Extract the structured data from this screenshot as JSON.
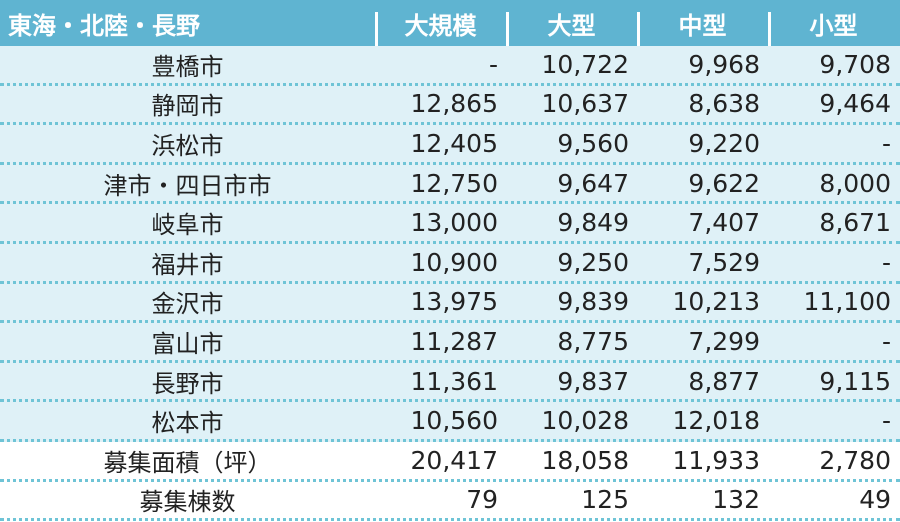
{
  "header": {
    "region": "東海・北陸・長野",
    "columns": [
      "大規模",
      "大型",
      "中型",
      "小型"
    ]
  },
  "rows": [
    {
      "label": "豊橋市",
      "values": [
        "-",
        "10,722",
        "9,968",
        "9,708"
      ]
    },
    {
      "label": "静岡市",
      "values": [
        "12,865",
        "10,637",
        "8,638",
        "9,464"
      ]
    },
    {
      "label": "浜松市",
      "values": [
        "12,405",
        "9,560",
        "9,220",
        "-"
      ]
    },
    {
      "label": "津市・四日市市",
      "values": [
        "12,750",
        "9,647",
        "9,622",
        "8,000"
      ]
    },
    {
      "label": "岐阜市",
      "values": [
        "13,000",
        "9,849",
        "7,407",
        "8,671"
      ]
    },
    {
      "label": "福井市",
      "values": [
        "10,900",
        "9,250",
        "7,529",
        "-"
      ]
    },
    {
      "label": "金沢市",
      "values": [
        "13,975",
        "9,839",
        "10,213",
        "11,100"
      ]
    },
    {
      "label": "富山市",
      "values": [
        "11,287",
        "8,775",
        "7,299",
        "-"
      ]
    },
    {
      "label": "長野市",
      "values": [
        "11,361",
        "9,837",
        "8,877",
        "9,115"
      ]
    },
    {
      "label": "松本市",
      "values": [
        "10,560",
        "10,028",
        "12,018",
        "-"
      ]
    }
  ],
  "totals": [
    {
      "label": "募集面積（坪）",
      "values": [
        "20,417",
        "18,058",
        "11,933",
        "2,780"
      ]
    },
    {
      "label": "募集棟数",
      "values": [
        "79",
        "125",
        "132",
        "49"
      ]
    }
  ],
  "colors": {
    "header_bg": "#5fb4d1",
    "stripe": "#dff1f7",
    "border": "#6fc4d6"
  }
}
